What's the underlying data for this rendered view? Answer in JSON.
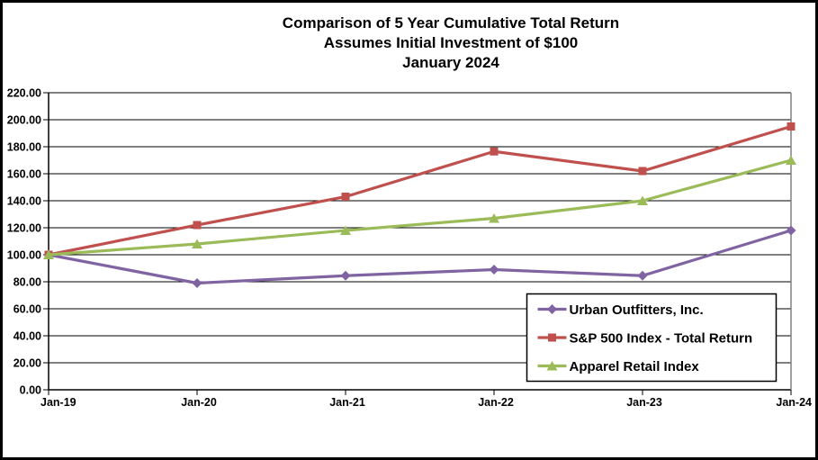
{
  "figure": {
    "kind": "stock-performance-line-chart"
  },
  "chart_data": {
    "type": "line",
    "title": "Comparison of 5 Year Cumulative Total Return",
    "subtitle": "Assumes Initial Investment of $100",
    "subtitle2": "January 2024",
    "categories": [
      "Jan-19",
      "Jan-20",
      "Jan-21",
      "Jan-22",
      "Jan-23",
      "Jan-24"
    ],
    "series": [
      {
        "name": "Urban Outfitters, Inc.",
        "color": "#8064A2",
        "marker": "diamond",
        "values": [
          100,
          79,
          84.5,
          89,
          84.5,
          118
        ]
      },
      {
        "name": "S&P 500 Index - Total Return",
        "color": "#C0504D",
        "marker": "square",
        "values": [
          100,
          122,
          143,
          176.5,
          162,
          195
        ]
      },
      {
        "name": "Apparel Retail Index",
        "color": "#9BBB59",
        "marker": "triangle",
        "values": [
          100,
          108,
          118,
          127,
          140,
          170
        ]
      }
    ],
    "y_axis": {
      "min": 0,
      "max": 220,
      "step": 20,
      "tick_decimals": 2
    },
    "grid": true,
    "legend_position": "inside-bottom-right",
    "colors": {
      "gridline": "#000000",
      "axis": "#000000",
      "plot_right_border": "#808080",
      "figure_border": "#000000",
      "background": "#ffffff"
    }
  }
}
